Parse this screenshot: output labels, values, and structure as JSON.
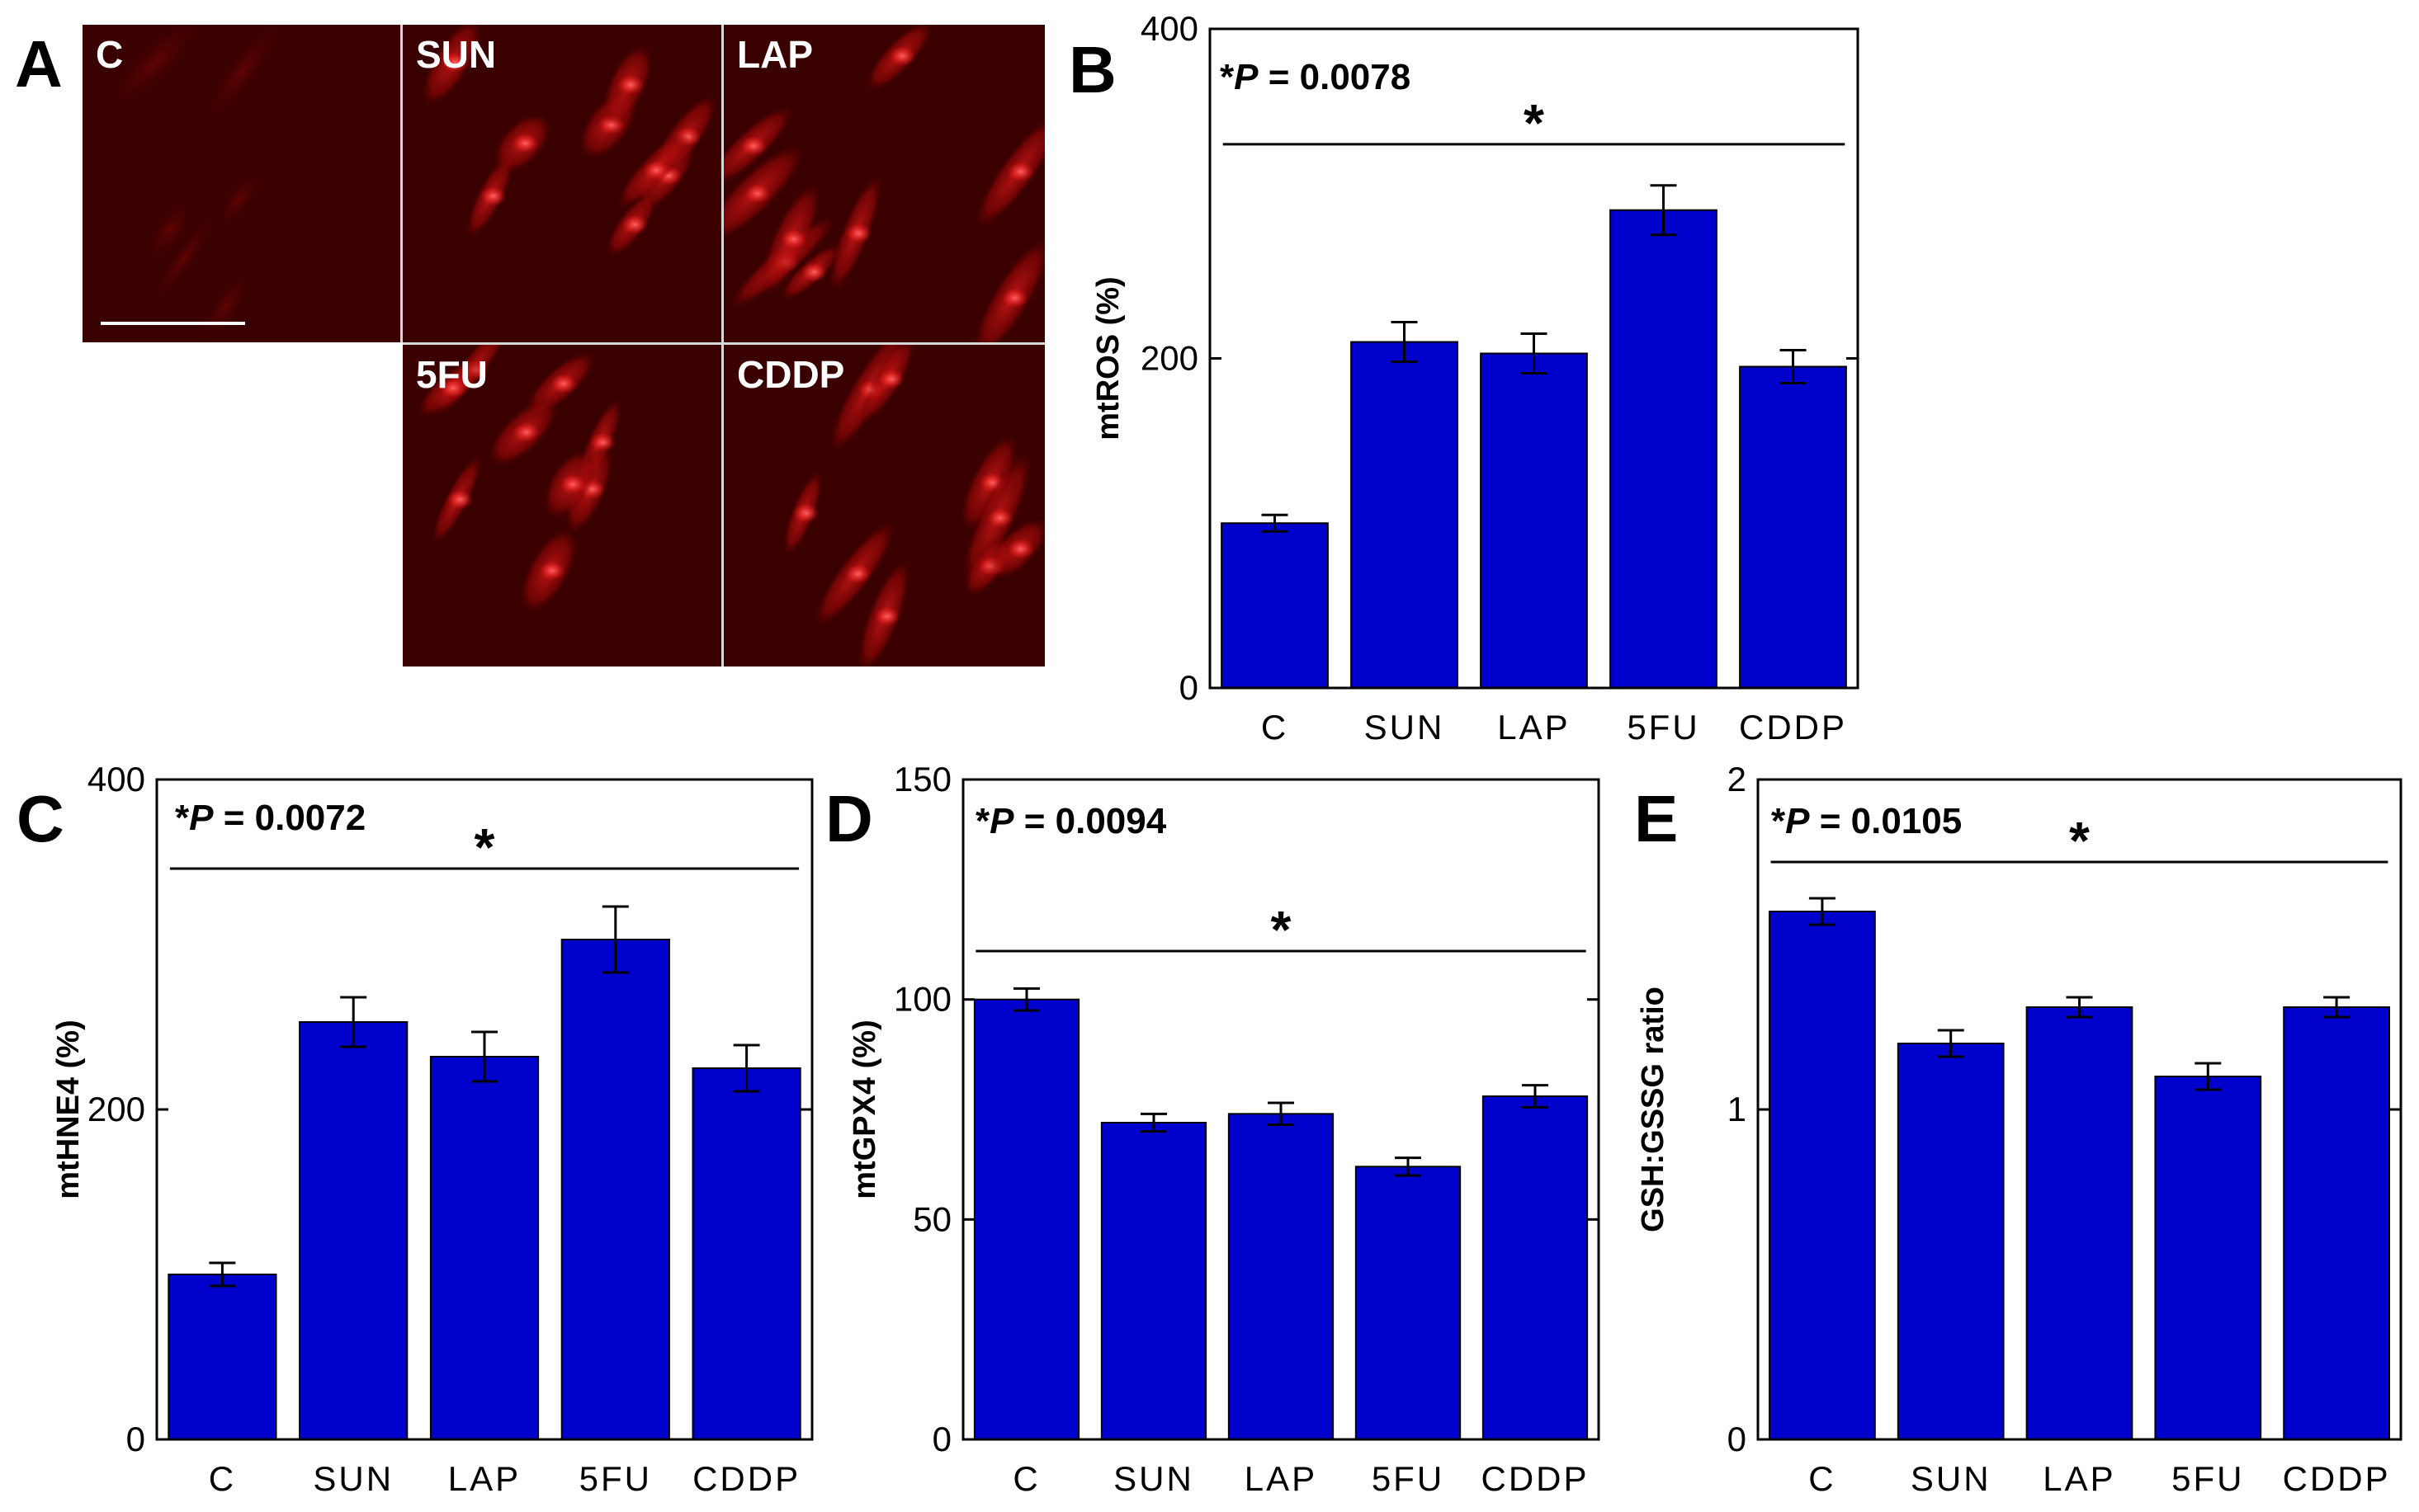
{
  "figure": {
    "panel_a": {
      "letter": "A",
      "images": [
        {
          "label": "C",
          "intensity": "low"
        },
        {
          "label": "SUN",
          "intensity": "high"
        },
        {
          "label": "LAP",
          "intensity": "high"
        },
        {
          "label": "5FU",
          "intensity": "high"
        },
        {
          "label": "CDDP",
          "intensity": "high"
        }
      ],
      "scale_bar": true
    },
    "colors": {
      "bar": "#0000CC",
      "bar_edge": "#000000",
      "axis": "#000000",
      "image_bg": "#3a0000",
      "cell": "#c01010",
      "nucleus": "#ff2a2a"
    }
  },
  "chart_data": [
    {
      "id": "B",
      "letter": "B",
      "type": "bar",
      "categories": [
        "C",
        "SUN",
        "LAP",
        "5FU",
        "CDDP"
      ],
      "values": [
        100,
        210,
        203,
        290,
        195
      ],
      "errors": [
        5,
        12,
        12,
        15,
        10
      ],
      "ylabel": "mtROS (%)",
      "ylim": [
        0,
        400
      ],
      "yticks": [
        0,
        200,
        400
      ],
      "ytick_labels": [
        "0",
        "200",
        "400"
      ],
      "pvalue_prefix": "*",
      "pvalue_italic": "P",
      "pvalue_rest": " = 0.0078",
      "significance": "*",
      "significance_level": 330
    },
    {
      "id": "C",
      "letter": "C",
      "type": "bar",
      "categories": [
        "C",
        "SUN",
        "LAP",
        "5FU",
        "CDDP"
      ],
      "values": [
        100,
        253,
        232,
        303,
        225
      ],
      "errors": [
        7,
        15,
        15,
        20,
        14
      ],
      "ylabel": "mtHNE4 (%)",
      "ylim": [
        0,
        400
      ],
      "yticks": [
        0,
        200,
        400
      ],
      "ytick_labels": [
        "0",
        "200",
        "400"
      ],
      "pvalue_prefix": "*",
      "pvalue_italic": "P",
      "pvalue_rest": " = 0.0072",
      "significance": "*",
      "significance_level": 346
    },
    {
      "id": "D",
      "letter": "D",
      "type": "bar",
      "categories": [
        "C",
        "SUN",
        "LAP",
        "5FU",
        "CDDP"
      ],
      "values": [
        100,
        72,
        74,
        62,
        78
      ],
      "errors": [
        2.5,
        2,
        2.5,
        2,
        2.5
      ],
      "ylabel": "mtGPX4 (%)",
      "ylim": [
        0,
        150
      ],
      "yticks": [
        0,
        50,
        100,
        150
      ],
      "ytick_labels": [
        "0",
        "50",
        "100",
        "150"
      ],
      "pvalue_prefix": "*",
      "pvalue_italic": "P",
      "pvalue_rest": " = 0.0094",
      "significance": "*",
      "significance_level": 111
    },
    {
      "id": "E",
      "letter": "E",
      "type": "bar",
      "categories": [
        "C",
        "SUN",
        "LAP",
        "5FU",
        "CDDP"
      ],
      "values": [
        1.6,
        1.2,
        1.31,
        1.1,
        1.31
      ],
      "errors": [
        0.04,
        0.04,
        0.03,
        0.04,
        0.03
      ],
      "ylabel": "GSH:GSSG ratio",
      "ylim": [
        0,
        2
      ],
      "yticks": [
        0,
        1,
        2
      ],
      "ytick_labels": [
        "0",
        "1",
        "2"
      ],
      "pvalue_prefix": "*",
      "pvalue_italic": "P",
      "pvalue_rest": " = 0.0105",
      "significance": "*",
      "significance_level": 1.75
    }
  ]
}
